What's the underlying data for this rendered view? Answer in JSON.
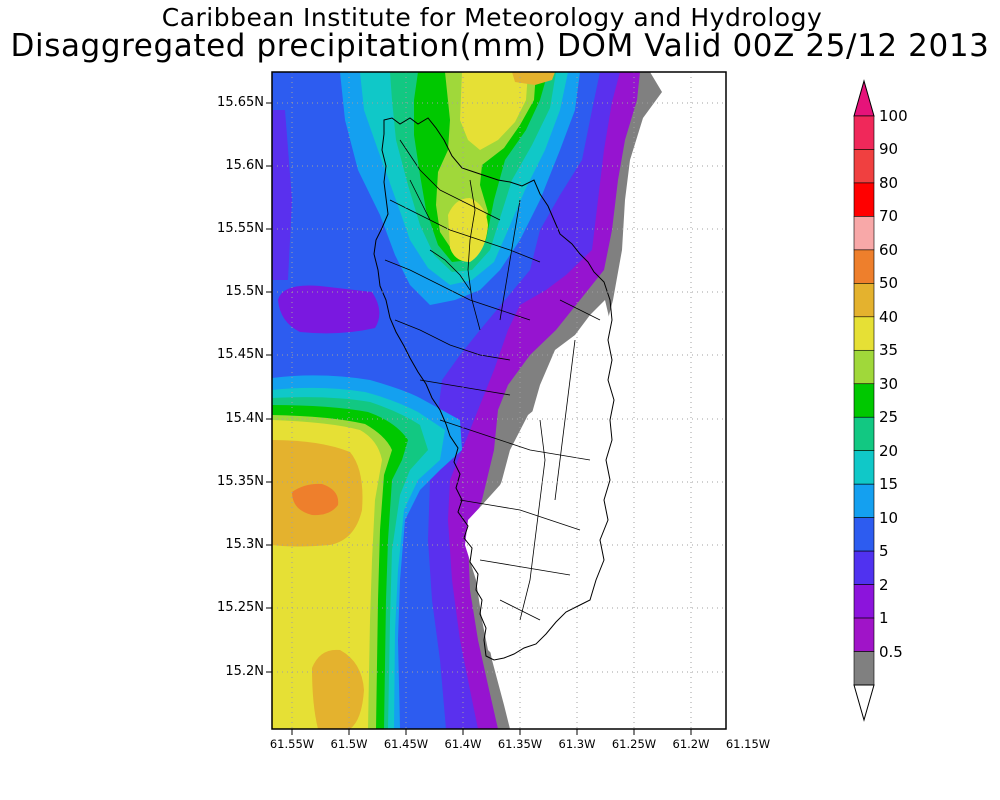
{
  "header": {
    "title": "Caribbean Institute for Meteorology and Hydrology",
    "subtitle": "Disaggregated precipitation(mm) DOM Valid 00Z 25/12 2013"
  },
  "map": {
    "y_ticks": [
      "15.65N",
      "15.6N",
      "15.55N",
      "15.5N",
      "15.45N",
      "15.4N",
      "15.35N",
      "15.3N",
      "15.25N",
      "15.2N"
    ],
    "x_ticks": [
      "61.55W",
      "61.5W",
      "61.45W",
      "61.4W",
      "61.35W",
      "61.3W",
      "61.25W",
      "61.2W",
      "61.15W"
    ]
  },
  "colorbar": {
    "labels": [
      "100",
      "90",
      "80",
      "70",
      "60",
      "50",
      "40",
      "35",
      "30",
      "25",
      "20",
      "15",
      "10",
      "5",
      "2",
      "1",
      "0.5"
    ],
    "colors": [
      "#f0285a",
      "#f04040",
      "#ff0000",
      "#f8a8a8",
      "#ee7f2c",
      "#e4b22e",
      "#e6e035",
      "#a0d83a",
      "#00c800",
      "#12c882",
      "#10c8c8",
      "#14a0f0",
      "#2d5cf0",
      "#5032f0",
      "#8c14dc",
      "#a014c8",
      "#808080"
    ],
    "top_arrow_color": "#e6137a",
    "bottom_arrow_color": "#ffffff"
  },
  "palette": {
    "background_value_color": "#d8d8dc",
    "land_no_rain": "#ffffff"
  }
}
